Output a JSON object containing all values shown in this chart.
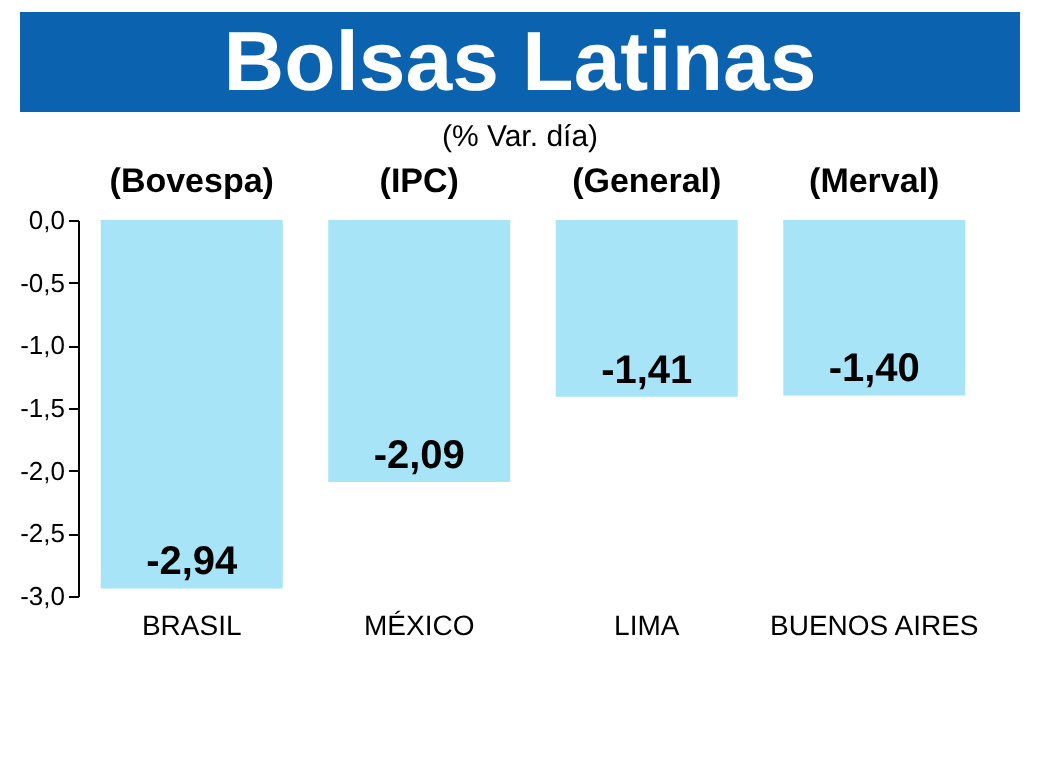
{
  "chart_data": {
    "type": "bar",
    "title": "Bolsas Latinas",
    "subtitle": "(% Var. día)",
    "categories": [
      "BRASIL",
      "MÉXICO",
      "LIMA",
      "BUENOS AIRES"
    ],
    "values": [
      -2.94,
      -2.09,
      -1.41,
      -1.4
    ],
    "value_labels": [
      "-2,94",
      "-2,09",
      "-1,41",
      "-1,40"
    ],
    "color": "#a8e4f8",
    "ylim": [
      -3,
      0
    ],
    "yticks": [
      {
        "value": 0,
        "label": "0,0"
      },
      {
        "value": -0.5,
        "label": "-0,5"
      },
      {
        "value": -1,
        "label": "-1,0"
      },
      {
        "value": -1.5,
        "label": "-1,5"
      },
      {
        "value": -2,
        "label": "-2,0"
      },
      {
        "value": -2.5,
        "label": "-2,5"
      },
      {
        "value": -3,
        "label": "-3,0"
      }
    ],
    "annotations": [
      {
        "text": "(Bovespa)",
        "x": "BRASIL",
        "y": 0
      },
      {
        "text": "(IPC)",
        "x": "MÉXICO",
        "y": 0
      },
      {
        "text": "(General)",
        "x": "LIMA",
        "y": 0
      },
      {
        "text": "(Merval)",
        "x": "BUENOS AIRES",
        "y": 0
      }
    ],
    "grid": false
  }
}
